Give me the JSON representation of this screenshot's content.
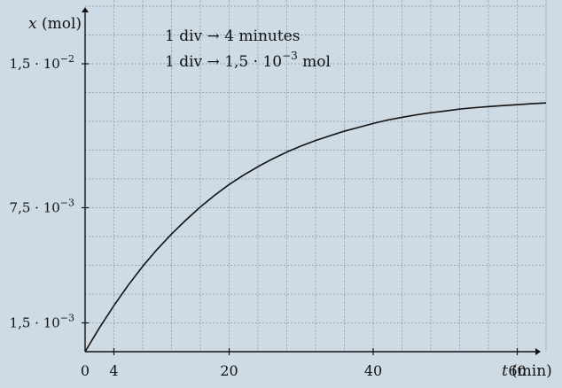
{
  "chart_data": {
    "type": "line",
    "title": "",
    "xlabel": "t",
    "xunit": "(min)",
    "ylabel": "x",
    "yunit": "(mol)",
    "xlim": [
      0,
      64
    ],
    "ylim": [
      0,
      0.0183
    ],
    "grid": true,
    "x_ticks": [
      {
        "value": 0,
        "label": "0"
      },
      {
        "value": 4,
        "label": "4"
      },
      {
        "value": 20,
        "label": "20"
      },
      {
        "value": 40,
        "label": "40"
      },
      {
        "value": 60,
        "label": "60"
      }
    ],
    "y_ticks": [
      {
        "value": 0.0015,
        "mant": "1,5",
        "exp": "−3"
      },
      {
        "value": 0.0075,
        "mant": "7,5",
        "exp": "−3"
      },
      {
        "value": 0.015,
        "mant": "1,5",
        "exp": "−2"
      }
    ],
    "annotations": [
      {
        "id": "time-scale",
        "parts": [
          "1 div",
          "4 minutes"
        ]
      },
      {
        "id": "mol-scale",
        "parts": [
          "1 div",
          "1,5 · 10",
          "−3",
          " mol"
        ]
      }
    ],
    "series": [
      {
        "x": [
          0,
          2,
          4,
          6,
          8,
          10,
          12,
          14,
          16,
          18,
          20,
          22,
          24,
          26,
          28,
          30,
          32,
          34,
          36,
          38,
          40,
          42,
          44,
          46,
          48,
          50,
          52,
          54,
          56,
          58,
          60,
          62,
          64
        ],
        "y": [
          0,
          0.00125,
          0.0024,
          0.00347,
          0.00445,
          0.00533,
          0.00613,
          0.00686,
          0.00754,
          0.00815,
          0.00871,
          0.0092,
          0.00964,
          0.01004,
          0.0104,
          0.01072,
          0.011,
          0.01125,
          0.01149,
          0.01169,
          0.01189,
          0.01207,
          0.01221,
          0.01234,
          0.01245,
          0.01254,
          0.01264,
          0.01271,
          0.01277,
          0.01282,
          0.01287,
          0.01292,
          0.01296
        ]
      }
    ]
  }
}
